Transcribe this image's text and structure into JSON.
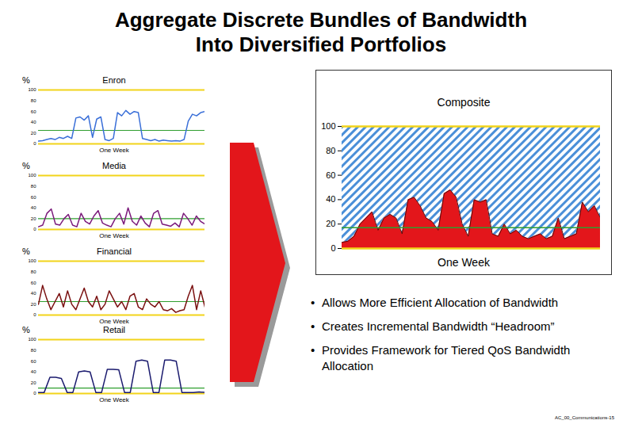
{
  "title": [
    "Aggregate Discrete Bundles of Bandwidth",
    "Into Diversified Portfolios"
  ],
  "chart_data": [
    {
      "type": "line",
      "title": "Enron",
      "y_label": "%",
      "x_label": "One Week",
      "color": "#3a6fd8",
      "ylim": [
        0,
        100
      ],
      "yticks": [
        0,
        20,
        40,
        60,
        80,
        100
      ],
      "average": 25,
      "tick_labels": "y",
      "values": [
        5,
        6,
        8,
        10,
        8,
        12,
        10,
        14,
        10,
        48,
        50,
        44,
        52,
        12,
        46,
        50,
        8,
        6,
        10,
        58,
        52,
        62,
        55,
        60,
        58,
        10,
        8,
        6,
        8,
        5,
        7,
        6,
        5,
        6,
        5,
        8,
        42,
        55,
        52,
        58,
        60
      ]
    },
    {
      "type": "line",
      "title": "Media",
      "y_label": "%",
      "x_label": "One Week",
      "color": "#7b1a7b",
      "ylim": [
        0,
        100
      ],
      "yticks": [
        0,
        20,
        40,
        60,
        80,
        100
      ],
      "average": 20,
      "tick_labels": "y",
      "values": [
        5,
        8,
        30,
        38,
        10,
        8,
        20,
        28,
        8,
        5,
        30,
        15,
        10,
        25,
        35,
        12,
        8,
        5,
        20,
        30,
        10,
        40,
        15,
        8,
        25,
        12,
        5,
        30,
        35,
        10,
        8,
        6,
        12,
        5,
        30,
        20,
        8,
        25,
        15,
        10
      ]
    },
    {
      "type": "line",
      "title": "Financial",
      "y_label": "%",
      "x_label": "One Week",
      "color": "#7a1010",
      "ylim": [
        0,
        100
      ],
      "yticks": [
        0,
        20,
        40,
        60,
        80,
        100
      ],
      "average": 25,
      "tick_labels": "y",
      "values": [
        20,
        55,
        30,
        10,
        25,
        40,
        15,
        45,
        20,
        10,
        30,
        50,
        25,
        15,
        35,
        10,
        20,
        45,
        30,
        15,
        25,
        10,
        35,
        40,
        15,
        10,
        30,
        20,
        15,
        25,
        10,
        8,
        12,
        5,
        8,
        10,
        35,
        55,
        10,
        45,
        15
      ]
    },
    {
      "type": "line",
      "title": "Retail",
      "y_label": "%",
      "x_label": "One Week",
      "color": "#1a1a6e",
      "ylim": [
        0,
        100
      ],
      "yticks": [
        0,
        20,
        40,
        60,
        80,
        100
      ],
      "average": 10,
      "tick_labels": "y",
      "values": [
        2,
        2,
        30,
        30,
        28,
        2,
        2,
        40,
        42,
        40,
        2,
        2,
        45,
        45,
        44,
        2,
        2,
        60,
        62,
        60,
        2,
        2,
        62,
        62,
        60,
        2,
        2,
        2,
        3,
        2
      ]
    },
    {
      "type": "area",
      "title": "Composite",
      "x_label": "One Week",
      "color": "#e3161b",
      "ylim": [
        0,
        100
      ],
      "yticks": [
        0,
        20,
        40,
        60,
        80,
        100
      ],
      "average": 17,
      "tick_labels": "y",
      "values": [
        5,
        6,
        10,
        20,
        25,
        30,
        15,
        25,
        28,
        25,
        12,
        40,
        42,
        35,
        25,
        22,
        15,
        45,
        48,
        42,
        20,
        10,
        40,
        38,
        40,
        12,
        10,
        20,
        12,
        15,
        10,
        8,
        10,
        12,
        8,
        10,
        25,
        8,
        10,
        12,
        38,
        30,
        35,
        25
      ]
    }
  ],
  "bullets": [
    "Allows More Efficient Allocation of Bandwidth",
    "Creates Incremental Bandwidth “Headroom”",
    "Provides Framework for Tiered QoS Bandwidth Allocation"
  ],
  "footer": "AC_00_Communications-15"
}
